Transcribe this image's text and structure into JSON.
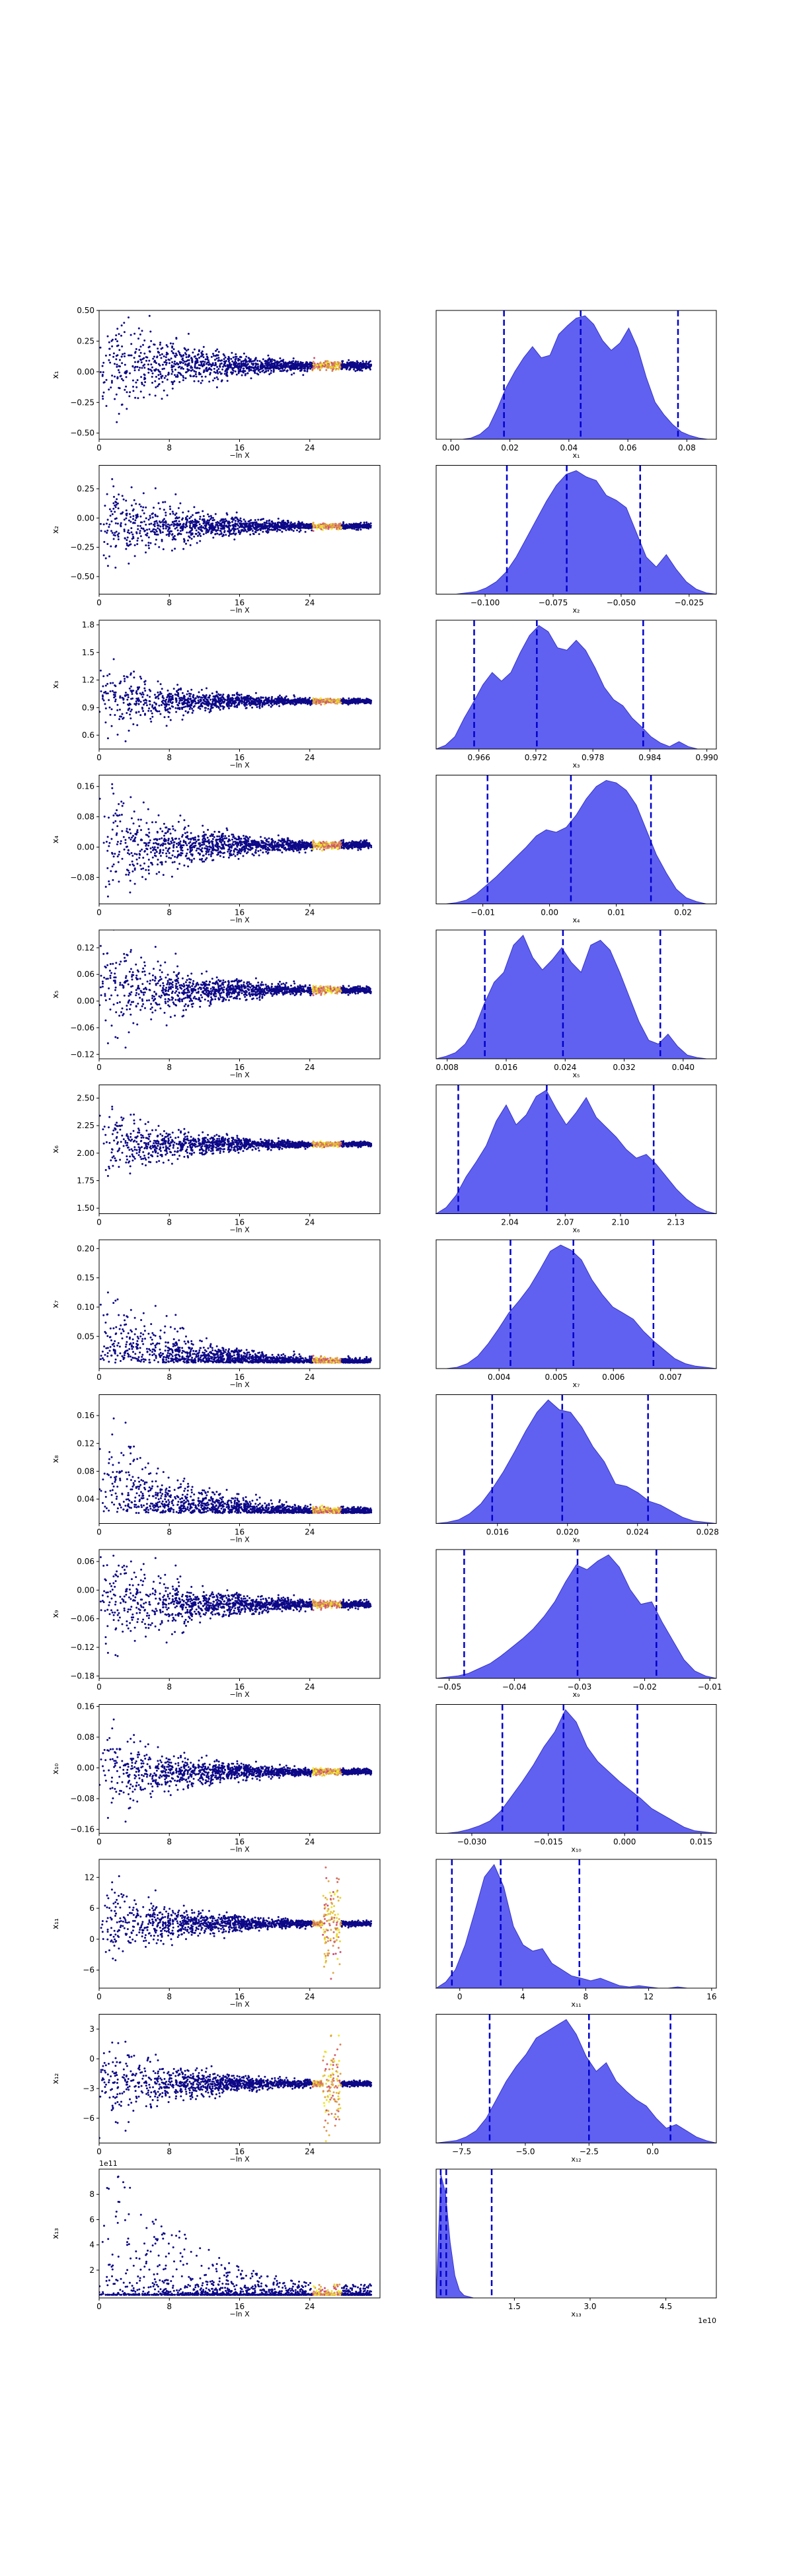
{
  "figure": {
    "background": "#ffffff",
    "colors": {
      "scatter_low": "#0d0887",
      "scatter_mid": "#cc4778",
      "scatter_high": "#f0f921",
      "kde_fill": "#5050f0",
      "kde_edge": "#3434c8",
      "quantile_line": "#0000cc",
      "axis": "#000000"
    }
  },
  "chart_data": [
    {
      "type": "scatter",
      "xlabel": "−ln X",
      "ylabel": "x₁",
      "xlim": [
        0,
        32
      ],
      "ylim": [
        -0.55,
        0.5
      ],
      "xticks": [
        0,
        8,
        16,
        24
      ],
      "yticks": [
        -0.5,
        -0.25,
        0.0,
        0.25,
        0.5
      ],
      "ytick_labels": [
        "−0.50",
        "−0.25",
        "0.00",
        "0.25",
        "0.50"
      ],
      "center": 0.05,
      "spread": 0.25,
      "converged": 0.05,
      "skew": 0,
      "burst": 0
    },
    {
      "type": "area",
      "xlabel": "x₁",
      "xlim": [
        -0.005,
        0.09
      ],
      "xticks": [
        0.0,
        0.02,
        0.04,
        0.06,
        0.08
      ],
      "xtick_labels": [
        "0.00",
        "0.02",
        "0.04",
        "0.06",
        "0.08"
      ],
      "quantiles": [
        0.018,
        0.044,
        0.077
      ],
      "density": [
        0,
        0,
        0,
        0,
        0.01,
        0.04,
        0.1,
        0.25,
        0.42,
        0.55,
        0.66,
        0.75,
        0.66,
        0.68,
        0.85,
        0.92,
        0.98,
        1.0,
        0.93,
        0.8,
        0.72,
        0.78,
        0.9,
        0.74,
        0.5,
        0.3,
        0.2,
        0.12,
        0.06,
        0.03,
        0.01,
        0,
        0
      ]
    },
    {
      "type": "scatter",
      "xlabel": "−ln X",
      "ylabel": "x₂",
      "xlim": [
        0,
        32
      ],
      "ylim": [
        -0.65,
        0.45
      ],
      "xticks": [
        0,
        8,
        16,
        24
      ],
      "yticks": [
        -0.5,
        -0.25,
        0.0,
        0.25
      ],
      "ytick_labels": [
        "−0.50",
        "−0.25",
        "0.00",
        "0.25"
      ],
      "center": -0.07,
      "spread": 0.2,
      "converged": -0.07,
      "skew": 0,
      "burst": 0
    },
    {
      "type": "area",
      "xlabel": "x₂",
      "xlim": [
        -0.118,
        -0.015
      ],
      "xticks": [
        -0.1,
        -0.075,
        -0.05,
        -0.025
      ],
      "xtick_labels": [
        "−0.100",
        "−0.075",
        "−0.050",
        "−0.025"
      ],
      "quantiles": [
        -0.092,
        -0.07,
        -0.043
      ],
      "density": [
        0,
        0,
        0,
        0.01,
        0.02,
        0.05,
        0.1,
        0.18,
        0.3,
        0.45,
        0.6,
        0.75,
        0.88,
        0.97,
        1.0,
        0.95,
        0.92,
        0.8,
        0.76,
        0.7,
        0.5,
        0.3,
        0.22,
        0.32,
        0.2,
        0.1,
        0.04,
        0.01,
        0
      ]
    },
    {
      "type": "scatter",
      "xlabel": "−ln X",
      "ylabel": "x₃",
      "xlim": [
        0,
        32
      ],
      "ylim": [
        0.45,
        1.85
      ],
      "xticks": [
        0,
        8,
        16,
        24
      ],
      "yticks": [
        0.6,
        0.9,
        1.2,
        1.5,
        1.8
      ],
      "ytick_labels": [
        "0.6",
        "0.9",
        "1.2",
        "1.5",
        "1.8"
      ],
      "center": 0.97,
      "spread": 0.18,
      "converged": 0.974,
      "skew": 0.4,
      "burst": 0
    },
    {
      "type": "area",
      "xlabel": "x₃",
      "xlim": [
        0.9615,
        0.991
      ],
      "xticks": [
        0.966,
        0.972,
        0.978,
        0.984,
        0.99
      ],
      "xtick_labels": [
        "0.966",
        "0.972",
        "0.978",
        "0.984",
        "0.990"
      ],
      "quantiles": [
        0.9655,
        0.9721,
        0.9833
      ],
      "density": [
        0,
        0.03,
        0.1,
        0.25,
        0.38,
        0.52,
        0.62,
        0.55,
        0.62,
        0.78,
        0.92,
        1.0,
        0.95,
        0.82,
        0.8,
        0.88,
        0.8,
        0.66,
        0.5,
        0.4,
        0.35,
        0.25,
        0.18,
        0.1,
        0.05,
        0.02,
        0.06,
        0.02,
        0,
        0,
        0
      ]
    },
    {
      "type": "scatter",
      "xlabel": "−ln X",
      "ylabel": "x₄",
      "xlim": [
        0,
        32
      ],
      "ylim": [
        -0.15,
        0.19
      ],
      "xticks": [
        0,
        8,
        16,
        24
      ],
      "yticks": [
        -0.08,
        0.0,
        0.08,
        0.16
      ],
      "ytick_labels": [
        "−0.08",
        "0.00",
        "0.08",
        "0.16"
      ],
      "center": 0.005,
      "spread": 0.08,
      "converged": 0.003,
      "skew": 0,
      "burst": 0
    },
    {
      "type": "area",
      "xlabel": "x₄",
      "xlim": [
        -0.017,
        0.025
      ],
      "xticks": [
        -0.01,
        0.0,
        0.01,
        0.02
      ],
      "xtick_labels": [
        "−0.01",
        "0.00",
        "0.01",
        "0.02"
      ],
      "quantiles": [
        -0.0093,
        0.0032,
        0.0152
      ],
      "density": [
        0,
        0,
        0.01,
        0.03,
        0.08,
        0.15,
        0.22,
        0.3,
        0.38,
        0.46,
        0.55,
        0.6,
        0.58,
        0.62,
        0.72,
        0.85,
        0.95,
        1.0,
        0.98,
        0.92,
        0.8,
        0.6,
        0.4,
        0.25,
        0.12,
        0.05,
        0.02,
        0,
        0
      ]
    },
    {
      "type": "scatter",
      "xlabel": "−ln X",
      "ylabel": "x₅",
      "xlim": [
        0,
        32
      ],
      "ylim": [
        -0.13,
        0.16
      ],
      "xticks": [
        0,
        8,
        16,
        24
      ],
      "yticks": [
        -0.12,
        -0.06,
        0.0,
        0.06,
        0.12
      ],
      "ytick_labels": [
        "−0.12",
        "−0.06",
        "0.00",
        "0.06",
        "0.12"
      ],
      "center": 0.025,
      "spread": 0.06,
      "converged": 0.024,
      "skew": 0,
      "burst": 0
    },
    {
      "type": "area",
      "xlabel": "x₅",
      "xlim": [
        0.0065,
        0.0445
      ],
      "xticks": [
        0.008,
        0.016,
        0.024,
        0.032,
        0.04
      ],
      "xtick_labels": [
        "0.008",
        "0.016",
        "0.024",
        "0.032",
        "0.040"
      ],
      "quantiles": [
        0.0131,
        0.0237,
        0.0369
      ],
      "density": [
        0,
        0.02,
        0.05,
        0.12,
        0.25,
        0.45,
        0.62,
        0.7,
        0.92,
        1.0,
        0.82,
        0.72,
        0.8,
        0.9,
        0.78,
        0.7,
        0.92,
        0.96,
        0.88,
        0.7,
        0.5,
        0.3,
        0.15,
        0.12,
        0.2,
        0.1,
        0.03,
        0.01,
        0,
        0
      ]
    },
    {
      "type": "scatter",
      "xlabel": "−ln X",
      "ylabel": "x₆",
      "xlim": [
        0,
        32
      ],
      "ylim": [
        1.45,
        2.62
      ],
      "xticks": [
        0,
        8,
        16,
        24
      ],
      "yticks": [
        1.5,
        1.75,
        2.0,
        2.25,
        2.5
      ],
      "ytick_labels": [
        "1.50",
        "1.75",
        "2.00",
        "2.25",
        "2.50"
      ],
      "center": 2.08,
      "spread": 0.17,
      "converged": 2.07,
      "skew": 0,
      "burst": 0
    },
    {
      "type": "area",
      "xlabel": "x₆",
      "xlim": [
        2.0,
        2.152
      ],
      "xticks": [
        2.04,
        2.07,
        2.1,
        2.13
      ],
      "xtick_labels": [
        "2.04",
        "2.07",
        "2.10",
        "2.13"
      ],
      "quantiles": [
        2.012,
        2.06,
        2.118
      ],
      "density": [
        0,
        0.05,
        0.15,
        0.3,
        0.42,
        0.55,
        0.75,
        0.88,
        0.72,
        0.8,
        0.95,
        1.0,
        0.85,
        0.72,
        0.82,
        0.94,
        0.78,
        0.7,
        0.62,
        0.52,
        0.45,
        0.48,
        0.4,
        0.3,
        0.2,
        0.12,
        0.06,
        0.02,
        0
      ]
    },
    {
      "type": "scatter",
      "xlabel": "−ln X",
      "ylabel": "x₇",
      "xlim": [
        0,
        32
      ],
      "ylim": [
        -0.005,
        0.215
      ],
      "xticks": [
        0,
        8,
        16,
        24
      ],
      "yticks": [
        0.05,
        0.1,
        0.15,
        0.2
      ],
      "ytick_labels": [
        "0.05",
        "0.10",
        "0.15",
        "0.20"
      ],
      "center": 0.005,
      "spread": 0.05,
      "converged": 0.005,
      "skew": 1,
      "burst": 0
    },
    {
      "type": "area",
      "xlabel": "x₇",
      "xlim": [
        0.0029,
        0.0078
      ],
      "xticks": [
        0.004,
        0.005,
        0.006,
        0.007
      ],
      "xtick_labels": [
        "0.004",
        "0.005",
        "0.006",
        "0.007"
      ],
      "quantiles": [
        0.0042,
        0.0053,
        0.0067
      ],
      "density": [
        0,
        0,
        0.01,
        0.04,
        0.1,
        0.2,
        0.32,
        0.45,
        0.55,
        0.66,
        0.8,
        0.95,
        1.0,
        0.96,
        0.88,
        0.72,
        0.6,
        0.5,
        0.45,
        0.4,
        0.3,
        0.22,
        0.15,
        0.08,
        0.04,
        0.02,
        0.01,
        0
      ]
    },
    {
      "type": "scatter",
      "xlabel": "−ln X",
      "ylabel": "x₈",
      "xlim": [
        0,
        32
      ],
      "ylim": [
        0.005,
        0.19
      ],
      "xticks": [
        0,
        8,
        16,
        24
      ],
      "yticks": [
        0.04,
        0.08,
        0.12,
        0.16
      ],
      "ytick_labels": [
        "0.04",
        "0.08",
        "0.12",
        "0.16"
      ],
      "center": 0.02,
      "spread": 0.05,
      "converged": 0.02,
      "skew": 1,
      "burst": 0
    },
    {
      "type": "area",
      "xlabel": "x₈",
      "xlim": [
        0.0125,
        0.0285
      ],
      "xticks": [
        0.016,
        0.02,
        0.024,
        0.028
      ],
      "xtick_labels": [
        "0.016",
        "0.020",
        "0.024",
        "0.028"
      ],
      "quantiles": [
        0.0157,
        0.0197,
        0.0246
      ],
      "density": [
        0,
        0.01,
        0.03,
        0.08,
        0.16,
        0.28,
        0.42,
        0.58,
        0.75,
        0.9,
        1.0,
        0.92,
        0.9,
        0.78,
        0.62,
        0.5,
        0.32,
        0.3,
        0.25,
        0.18,
        0.15,
        0.1,
        0.05,
        0.02,
        0.01,
        0
      ]
    },
    {
      "type": "scatter",
      "xlabel": "−ln X",
      "ylabel": "x₉",
      "xlim": [
        0,
        32
      ],
      "ylim": [
        -0.185,
        0.085
      ],
      "xticks": [
        0,
        8,
        16,
        24
      ],
      "yticks": [
        -0.18,
        -0.12,
        -0.06,
        0.0,
        0.06
      ],
      "ytick_labels": [
        "−0.18",
        "−0.12",
        "−0.06",
        "0.00",
        "0.06"
      ],
      "center": -0.03,
      "spread": 0.06,
      "converged": -0.03,
      "skew": 0,
      "burst": 0
    },
    {
      "type": "area",
      "xlabel": "x₉",
      "xlim": [
        -0.052,
        -0.009
      ],
      "xticks": [
        -0.05,
        -0.04,
        -0.03,
        -0.02,
        -0.01
      ],
      "xtick_labels": [
        "−0.05",
        "−0.04",
        "−0.03",
        "−0.02",
        "−0.01"
      ],
      "quantiles": [
        -0.0477,
        -0.0303,
        -0.0182
      ],
      "density": [
        0,
        0.01,
        0.02,
        0.04,
        0.08,
        0.12,
        0.18,
        0.25,
        0.32,
        0.4,
        0.5,
        0.62,
        0.78,
        0.92,
        0.88,
        0.95,
        1.0,
        0.9,
        0.72,
        0.6,
        0.62,
        0.45,
        0.3,
        0.15,
        0.06,
        0.02,
        0
      ]
    },
    {
      "type": "scatter",
      "xlabel": "−ln X",
      "ylabel": "x₁₀",
      "xlim": [
        0,
        32
      ],
      "ylim": [
        -0.17,
        0.165
      ],
      "xticks": [
        0,
        8,
        16,
        24
      ],
      "yticks": [
        -0.16,
        -0.08,
        0.0,
        0.08,
        0.16
      ],
      "ytick_labels": [
        "−0.16",
        "−0.08",
        "0.00",
        "0.08",
        "0.16"
      ],
      "center": -0.01,
      "spread": 0.06,
      "converged": -0.012,
      "skew": 0,
      "burst": 0
    },
    {
      "type": "area",
      "xlabel": "x₁₀",
      "xlim": [
        -0.037,
        0.018
      ],
      "xticks": [
        -0.03,
        -0.015,
        0.0,
        0.015
      ],
      "xtick_labels": [
        "−0.030",
        "−0.015",
        "0.000",
        "0.015"
      ],
      "quantiles": [
        -0.024,
        -0.012,
        0.0025
      ],
      "density": [
        0,
        0,
        0.01,
        0.03,
        0.06,
        0.1,
        0.18,
        0.3,
        0.42,
        0.55,
        0.7,
        0.82,
        1.0,
        0.9,
        0.7,
        0.58,
        0.5,
        0.42,
        0.35,
        0.28,
        0.2,
        0.15,
        0.1,
        0.05,
        0.02,
        0.01,
        0
      ]
    },
    {
      "type": "scatter",
      "xlabel": "−ln X",
      "ylabel": "x₁₁",
      "xlim": [
        0,
        32
      ],
      "ylim": [
        -9.5,
        15.5
      ],
      "xticks": [
        0,
        8,
        16,
        24
      ],
      "yticks": [
        -6,
        0,
        6,
        12
      ],
      "ytick_labels": [
        "−6",
        "0",
        "6",
        "12"
      ],
      "center": 3,
      "spread": 4,
      "converged": 3,
      "skew": 0,
      "burst": 1
    },
    {
      "type": "area",
      "xlabel": "x₁₁",
      "xlim": [
        -1.5,
        16.3
      ],
      "xticks": [
        0,
        4,
        8,
        12,
        16
      ],
      "xtick_labels": [
        "0",
        "4",
        "8",
        "12",
        "16"
      ],
      "quantiles": [
        -0.5,
        2.6,
        7.6
      ],
      "density": [
        0,
        0.05,
        0.15,
        0.35,
        0.62,
        0.9,
        1.0,
        0.82,
        0.5,
        0.35,
        0.3,
        0.32,
        0.2,
        0.15,
        0.1,
        0.08,
        0.06,
        0.08,
        0.05,
        0.02,
        0.01,
        0.02,
        0.01,
        0,
        0,
        0.01,
        0,
        0,
        0,
        0
      ]
    },
    {
      "type": "scatter",
      "xlabel": "−ln X",
      "ylabel": "x₁₂",
      "xlim": [
        0,
        32
      ],
      "ylim": [
        -8.5,
        4.5
      ],
      "xticks": [
        0,
        8,
        16,
        24
      ],
      "yticks": [
        -6,
        -3,
        0,
        3
      ],
      "ytick_labels": [
        "−6",
        "−3",
        "0",
        "3"
      ],
      "center": -2.5,
      "spread": 2.2,
      "converged": -2.7,
      "skew": 0,
      "burst": 1
    },
    {
      "type": "area",
      "xlabel": "x₁₂",
      "xlim": [
        -8.5,
        2.5
      ],
      "xticks": [
        -7.5,
        -5.0,
        -2.5,
        0.0
      ],
      "xtick_labels": [
        "−7.5",
        "−5.0",
        "−2.5",
        "0.0"
      ],
      "quantiles": [
        -6.4,
        -2.5,
        0.7
      ],
      "density": [
        0,
        0.01,
        0.02,
        0.05,
        0.1,
        0.2,
        0.35,
        0.5,
        0.62,
        0.72,
        0.85,
        0.9,
        0.95,
        1.0,
        0.88,
        0.7,
        0.58,
        0.65,
        0.5,
        0.42,
        0.35,
        0.3,
        0.2,
        0.12,
        0.15,
        0.1,
        0.05,
        0.02,
        0
      ]
    },
    {
      "type": "scatter",
      "xlabel": "−ln X",
      "ylabel": "x₁₃",
      "offset_label": "1e11",
      "xlim": [
        0,
        32
      ],
      "ylim": [
        -0.2,
        10.0
      ],
      "xticks": [
        0,
        8,
        16,
        24
      ],
      "yticks": [
        2,
        4,
        6,
        8
      ],
      "ytick_labels": [
        "2",
        "4",
        "6",
        "8"
      ],
      "center": 0.1,
      "spread": 1.5,
      "converged": 0.05,
      "skew": 2,
      "burst": 0
    },
    {
      "type": "area",
      "xlabel": "x₁₃",
      "offset_label": "1e10",
      "xlim": [
        -0.05,
        5.5
      ],
      "xticks": [
        1.5,
        3.0,
        4.5
      ],
      "xtick_labels": [
        "1.5",
        "3.0",
        "4.5"
      ],
      "quantiles": [
        0.04,
        0.15,
        1.05
      ],
      "density": [
        0,
        1.0,
        0.85,
        0.45,
        0.18,
        0.06,
        0.02,
        0.01,
        0,
        0,
        0,
        0,
        0,
        0,
        0,
        0,
        0,
        0,
        0,
        0,
        0,
        0,
        0,
        0,
        0,
        0,
        0,
        0,
        0,
        0,
        0,
        0,
        0,
        0,
        0,
        0,
        0,
        0,
        0,
        0,
        0,
        0,
        0,
        0,
        0,
        0,
        0,
        0,
        0,
        0,
        0,
        0,
        0,
        0,
        0,
        0,
        0,
        0,
        0,
        0,
        0
      ]
    }
  ]
}
